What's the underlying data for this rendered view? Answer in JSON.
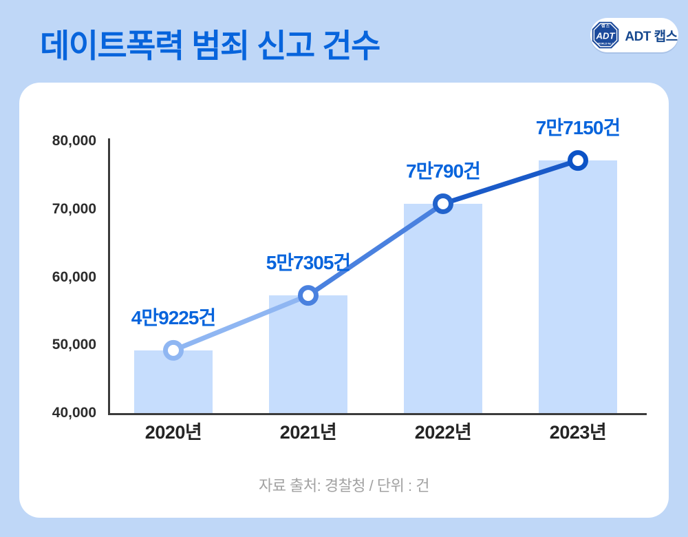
{
  "header": {
    "title": "데이트폭력 범죄 신고 건수"
  },
  "logo": {
    "badge_top": "캡 스",
    "badge_text": "ADT",
    "badge_bottom": "WORLD No.1",
    "brand": "ADT 캡스"
  },
  "chart_data": {
    "type": "bar",
    "overlay": "line",
    "categories": [
      "2020년",
      "2021년",
      "2022년",
      "2023년"
    ],
    "values": [
      49225,
      57305,
      70790,
      77150
    ],
    "value_labels": [
      "4만9225건",
      "5만7305건",
      "7만790건",
      "7만7150건"
    ],
    "ylim": [
      40000,
      80000
    ],
    "ytick_interval": 10000,
    "ytick_labels": [
      "40,000",
      "50,000",
      "60,000",
      "70,000",
      "80,000"
    ],
    "grid": "off",
    "legend": "none",
    "colors": {
      "bar": "#C6DDFD",
      "line_segments": [
        "#8FB6F2",
        "#4A81DF",
        "#1A5AC8"
      ],
      "marker_rings": [
        "#8FB6F2",
        "#4A81DF",
        "#2263CC",
        "#0C53C6"
      ],
      "marker_fill": "#FFFFFF",
      "data_label": "#0764DC",
      "axis": "#3B3B3B"
    }
  },
  "footer": {
    "source": "자료 출처: 경찰청 / 단위 : 건"
  }
}
